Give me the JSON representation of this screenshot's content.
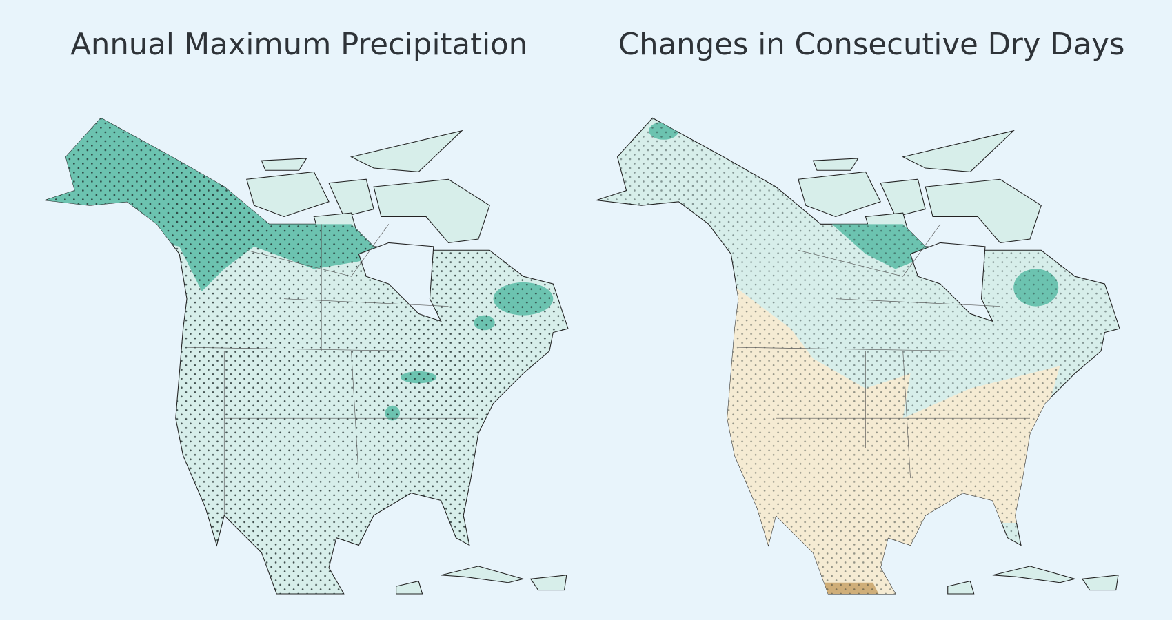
{
  "maps": [
    {
      "title": "Annual Maximum Precipitation"
    },
    {
      "title": "Changes in Consecutive Dry Days"
    }
  ]
}
